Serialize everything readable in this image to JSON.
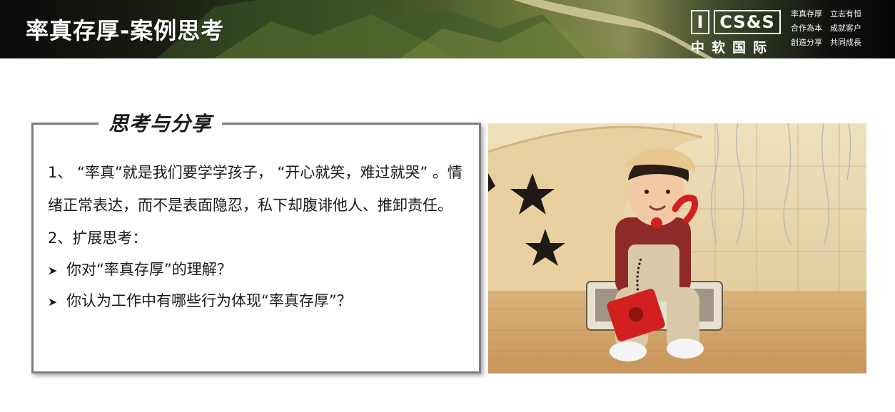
{
  "header": {
    "title": "率真存厚-案例思考",
    "logo": {
      "mark": "I",
      "brand": "CS&S",
      "name_cn": "中软国际"
    },
    "motto": [
      "率真存厚　立志有恒",
      "合作為本　成就客户",
      "創造分享　共同成長"
    ]
  },
  "card": {
    "title": "思考与分享",
    "point1": "1、 “率真”就是我们要学学孩子， “开心就笑，难过就哭” 。情绪正常表达，而不是表面隐忍，私下却腹诽他人、推卸责任。",
    "point2": "2、扩展思考：",
    "bullets": [
      "你对“率真存厚”的理解？",
      "你认为工作中有哪些行为体现“率真存厚”？"
    ]
  },
  "colors": {
    "frame_border": "#7f7f7f",
    "text": "#1a1a1a",
    "header_text": "#ffffff"
  },
  "icons": {
    "bullet": "arrow-right-icon"
  }
}
